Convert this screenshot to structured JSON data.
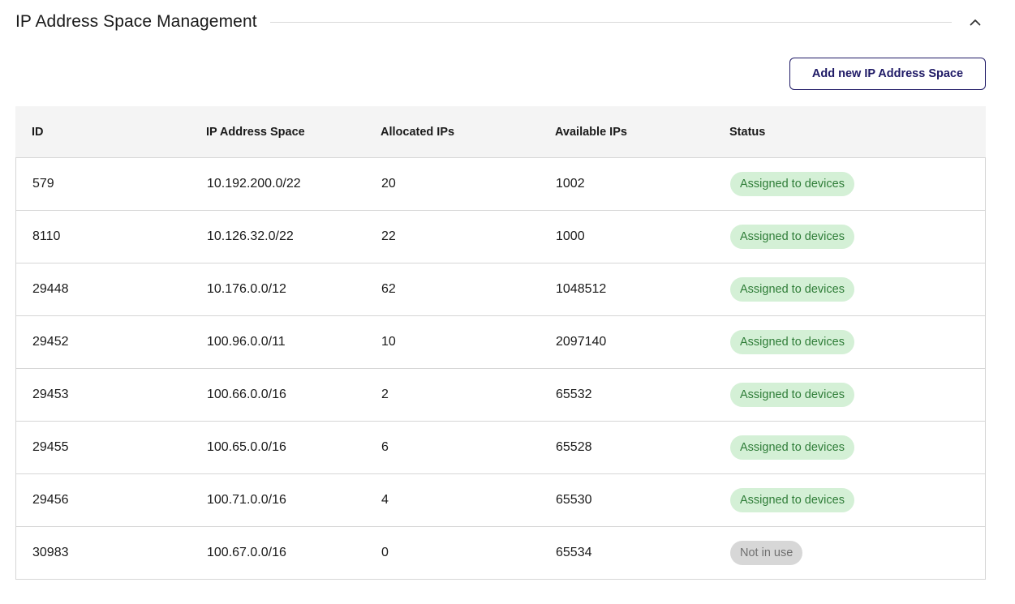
{
  "header": {
    "title": "IP Address Space Management"
  },
  "toolbar": {
    "add_label": "Add new IP Address Space"
  },
  "table": {
    "columns": [
      "ID",
      "IP Address Space",
      "Allocated IPs",
      "Available IPs",
      "Status"
    ],
    "rows": [
      {
        "id": "579",
        "space": "10.192.200.0/22",
        "allocated": "20",
        "available": "1002",
        "status": "Assigned to devices"
      },
      {
        "id": "8110",
        "space": "10.126.32.0/22",
        "allocated": "22",
        "available": "1000",
        "status": "Assigned to devices"
      },
      {
        "id": "29448",
        "space": "10.176.0.0/12",
        "allocated": "62",
        "available": "1048512",
        "status": "Assigned to devices"
      },
      {
        "id": "29452",
        "space": "100.96.0.0/11",
        "allocated": "10",
        "available": "2097140",
        "status": "Assigned to devices"
      },
      {
        "id": "29453",
        "space": "100.66.0.0/16",
        "allocated": "2",
        "available": "65532",
        "status": "Assigned to devices"
      },
      {
        "id": "29455",
        "space": "100.65.0.0/16",
        "allocated": "6",
        "available": "65528",
        "status": "Assigned to devices"
      },
      {
        "id": "29456",
        "space": "100.71.0.0/16",
        "allocated": "4",
        "available": "65530",
        "status": "Assigned to devices"
      },
      {
        "id": "30983",
        "space": "100.67.0.0/16",
        "allocated": "0",
        "available": "65534",
        "status": "Not in use"
      }
    ]
  },
  "icons": {
    "collapse": "chevron-up-icon"
  },
  "colors": {
    "accent": "#1f1a66",
    "assigned_bg": "#d4f0d6",
    "assigned_text": "#2f7d38",
    "unused_bg": "#d7d7d7",
    "unused_text": "#707070"
  }
}
